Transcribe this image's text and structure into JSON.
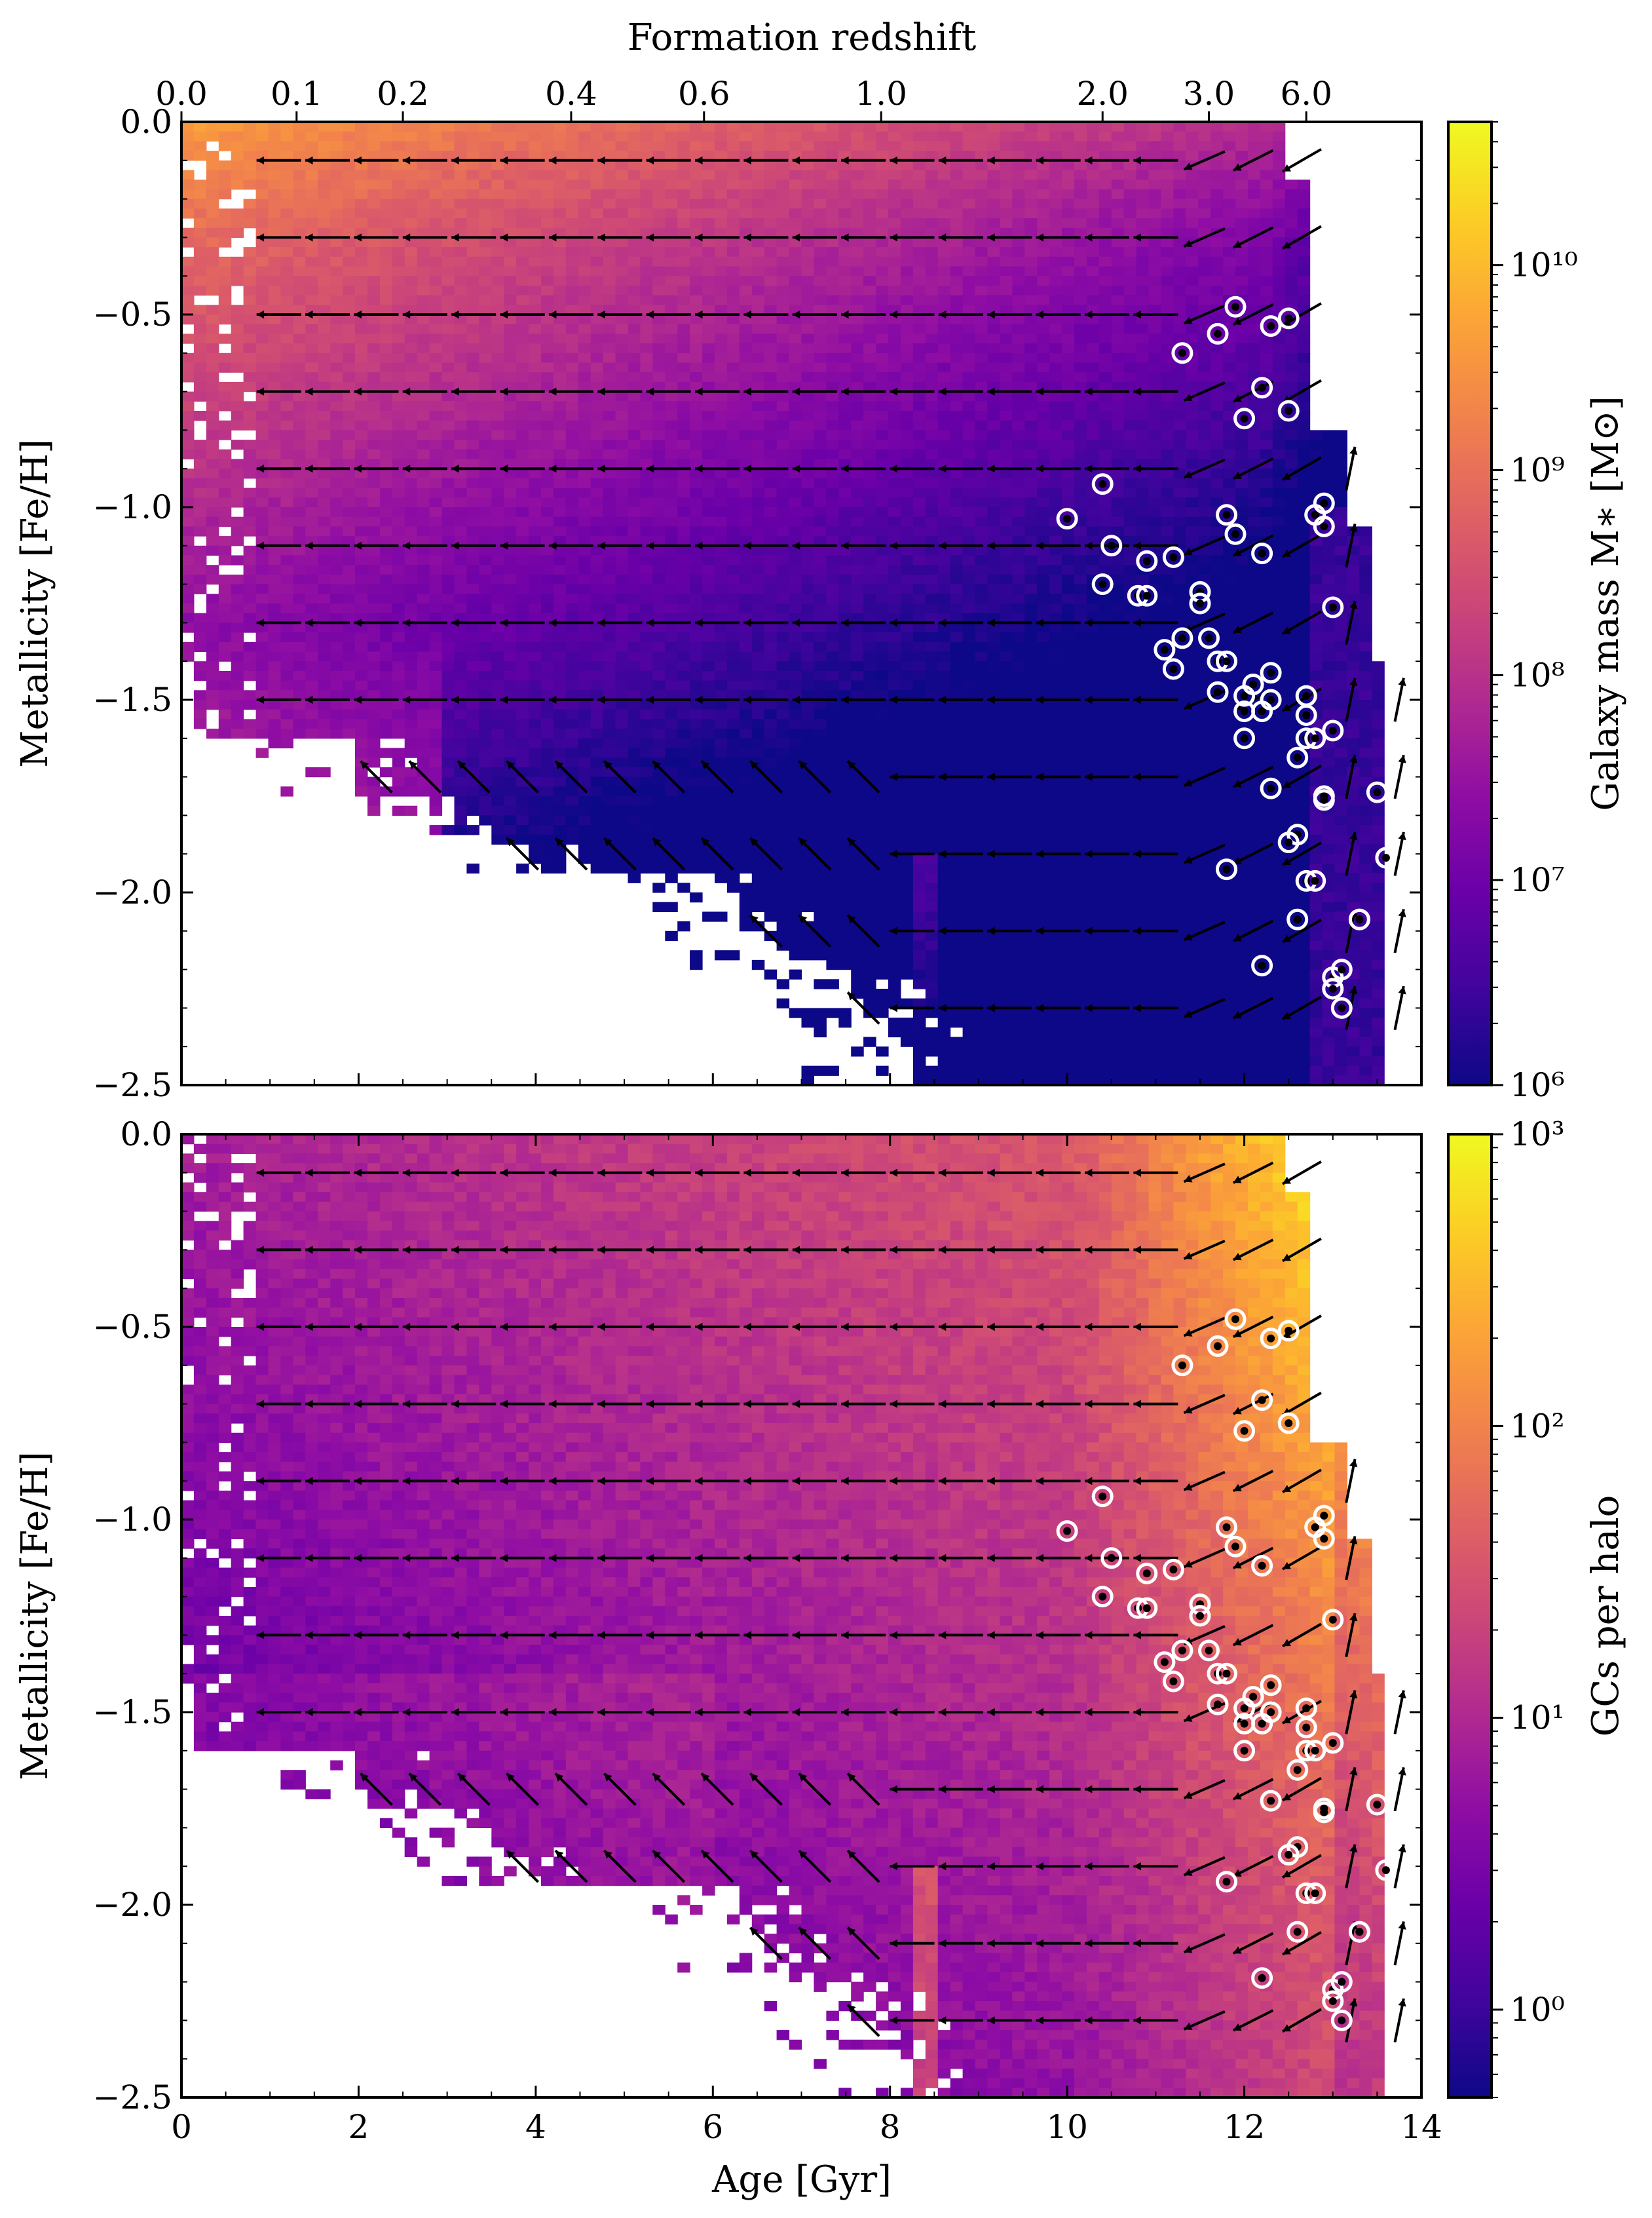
{
  "chart_data": [
    {
      "type": "heatmap",
      "panel": "top",
      "top_axis_label": "Formation redshift",
      "top_tick_labels": [
        "0.0",
        "0.1",
        "0.2",
        "0.4",
        "0.6",
        "1.0",
        "2.0",
        "3.0",
        "6.0"
      ],
      "top_tick_ages": [
        0.0,
        1.3,
        2.5,
        4.4,
        5.9,
        7.9,
        10.4,
        11.6,
        12.7
      ],
      "xlabel": "Age [Gyr]",
      "ylabel": "Metallicity [Fe/H]",
      "xlim": [
        0,
        14
      ],
      "ylim": [
        -2.5,
        0.0
      ],
      "y_tick_labels": [
        "0.0",
        "−0.5",
        "−1.0",
        "−1.5",
        "−2.0",
        "−2.5"
      ],
      "y_ticks": [
        0.0,
        -0.5,
        -1.0,
        -1.5,
        -2.0,
        -2.5
      ],
      "colorbar": {
        "label": "Galaxy mass M∗ [M⊙]",
        "scale": "log",
        "range": [
          1000000.0,
          50000000000.0
        ],
        "tick_labels": [
          "10⁶",
          "10⁷",
          "10⁸",
          "10⁹",
          "10¹⁰"
        ],
        "tick_values": [
          1000000.0,
          10000000.0,
          100000000.0,
          1000000000.0,
          10000000000.0
        ],
        "colormap": "plasma"
      }
    },
    {
      "type": "heatmap",
      "panel": "bottom",
      "xlabel": "Age [Gyr]",
      "ylabel": "Metallicity [Fe/H]",
      "xlim": [
        0,
        14
      ],
      "ylim": [
        -2.5,
        0.0
      ],
      "x_tick_labels": [
        "0",
        "2",
        "4",
        "6",
        "8",
        "10",
        "12",
        "14"
      ],
      "x_ticks": [
        0,
        2,
        4,
        6,
        8,
        10,
        12,
        14
      ],
      "y_tick_labels": [
        "0.0",
        "−0.5",
        "−1.0",
        "−1.5",
        "−2.0",
        "−2.5"
      ],
      "y_ticks": [
        0.0,
        -0.5,
        -1.0,
        -1.5,
        -2.0,
        -2.5
      ],
      "colorbar": {
        "label": "GCs per halo",
        "scale": "log",
        "range": [
          0.5,
          1000
        ],
        "tick_labels": [
          "10⁰",
          "10¹",
          "10²",
          "10³"
        ],
        "tick_values": [
          1,
          10,
          100,
          1000
        ],
        "colormap": "plasma"
      }
    }
  ],
  "observed_gcs": [
    [
      10.0,
      -1.03
    ],
    [
      10.4,
      -0.94
    ],
    [
      10.5,
      -1.1
    ],
    [
      10.4,
      -1.2
    ],
    [
      10.8,
      -1.23
    ],
    [
      10.9,
      -1.23
    ],
    [
      10.9,
      -1.14
    ],
    [
      11.2,
      -1.13
    ],
    [
      11.3,
      -0.6
    ],
    [
      11.1,
      -1.37
    ],
    [
      11.2,
      -1.42
    ],
    [
      11.3,
      -1.34
    ],
    [
      11.5,
      -1.22
    ],
    [
      11.5,
      -1.25
    ],
    [
      11.6,
      -1.34
    ],
    [
      11.7,
      -1.4
    ],
    [
      11.8,
      -1.4
    ],
    [
      11.7,
      -1.48
    ],
    [
      11.8,
      -1.02
    ],
    [
      11.9,
      -1.07
    ],
    [
      11.8,
      -1.94
    ],
    [
      12.0,
      -1.49
    ],
    [
      12.0,
      -1.53
    ],
    [
      12.0,
      -1.6
    ],
    [
      12.1,
      -1.46
    ],
    [
      12.2,
      -1.53
    ],
    [
      12.3,
      -1.5
    ],
    [
      12.3,
      -1.43
    ],
    [
      12.2,
      -1.12
    ],
    [
      12.2,
      -2.19
    ],
    [
      12.3,
      -1.73
    ],
    [
      11.7,
      -0.55
    ],
    [
      11.9,
      -0.48
    ],
    [
      12.3,
      -0.53
    ],
    [
      12.5,
      -0.51
    ],
    [
      12.0,
      -0.77
    ],
    [
      12.2,
      -0.69
    ],
    [
      12.5,
      -0.75
    ],
    [
      12.7,
      -1.49
    ],
    [
      12.7,
      -1.54
    ],
    [
      12.6,
      -1.65
    ],
    [
      12.7,
      -1.6
    ],
    [
      12.8,
      -1.6
    ],
    [
      12.9,
      -1.75
    ],
    [
      12.9,
      -1.76
    ],
    [
      12.6,
      -1.85
    ],
    [
      12.5,
      -1.87
    ],
    [
      12.7,
      -1.97
    ],
    [
      12.8,
      -1.97
    ],
    [
      12.6,
      -2.07
    ],
    [
      12.8,
      -1.02
    ],
    [
      12.9,
      -0.99
    ],
    [
      12.9,
      -1.05
    ],
    [
      13.0,
      -1.26
    ],
    [
      13.0,
      -1.58
    ],
    [
      13.0,
      -2.22
    ],
    [
      13.0,
      -2.25
    ],
    [
      13.1,
      -2.3
    ],
    [
      13.1,
      -2.2
    ],
    [
      13.3,
      -2.07
    ],
    [
      13.3,
      -2.07
    ],
    [
      13.5,
      -1.74
    ],
    [
      13.6,
      -1.91
    ]
  ]
}
